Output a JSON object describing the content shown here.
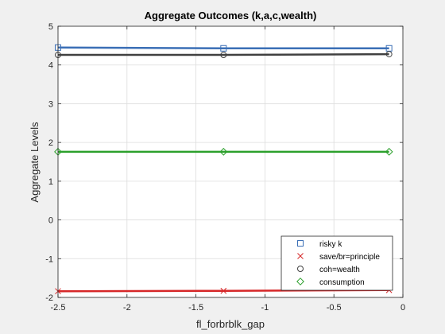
{
  "chart_data": {
    "type": "line",
    "title": "Aggregate Outcomes (k,a,c,wealth)",
    "xlabel": "fl_forbrblk_gap",
    "ylabel": "Aggregate Levels",
    "xlim": [
      -2.5,
      0
    ],
    "ylim": [
      -2,
      5
    ],
    "xticks": [
      "-2.5",
      "-2",
      "-1.5",
      "-1",
      "-0.5",
      "0"
    ],
    "yticks": [
      "-2",
      "-1",
      "0",
      "1",
      "2",
      "3",
      "4",
      "5"
    ],
    "grid": true,
    "legend_position": "bottom-right",
    "x": [
      -2.5,
      -1.3,
      -0.1
    ],
    "series": [
      {
        "name": "risky k",
        "values": [
          4.45,
          4.43,
          4.43
        ],
        "color": "#3b6fb6",
        "marker": "square"
      },
      {
        "name": "save/br=principle",
        "values": [
          -1.84,
          -1.83,
          -1.81
        ],
        "color": "#d62728",
        "marker": "x"
      },
      {
        "name": "coh=wealth",
        "values": [
          4.26,
          4.26,
          4.28
        ],
        "color": "#404040",
        "marker": "circle"
      },
      {
        "name": "consumption",
        "values": [
          1.76,
          1.76,
          1.76
        ],
        "color": "#2ca02c",
        "marker": "diamond"
      }
    ]
  }
}
